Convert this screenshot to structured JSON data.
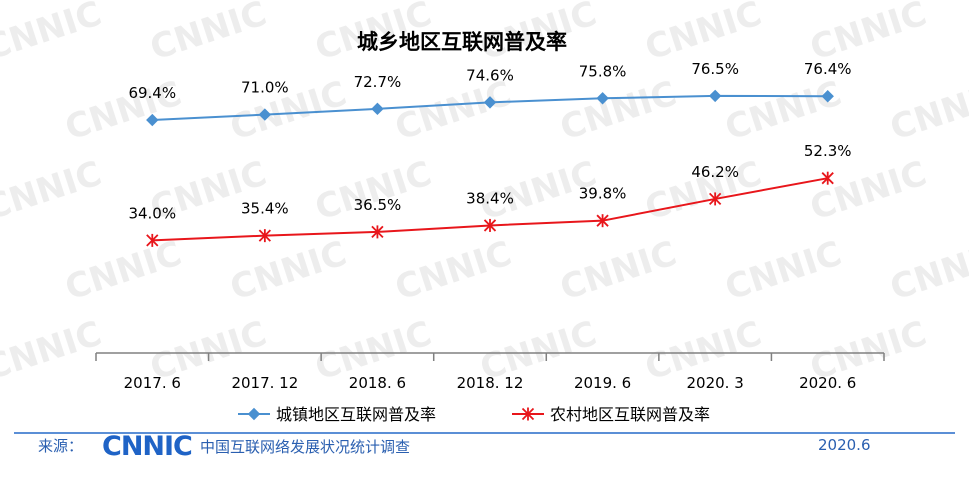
{
  "chart_data": {
    "type": "line",
    "title": "城乡地区互联网普及率",
    "categories": [
      "2017. 6",
      "2017. 12",
      "2018. 6",
      "2018. 12",
      "2019. 6",
      "2020. 3",
      "2020. 6"
    ],
    "series": [
      {
        "name": "城镇地区互联网普及率",
        "values": [
          69.4,
          71.0,
          72.7,
          74.6,
          75.8,
          76.5,
          76.4
        ],
        "labels": [
          "69.4%",
          "71.0%",
          "72.7%",
          "74.6%",
          "75.8%",
          "76.5%",
          "76.4%"
        ],
        "color": "#4a90d0",
        "marker": "diamond"
      },
      {
        "name": "农村地区互联网普及率",
        "values": [
          34.0,
          35.4,
          36.5,
          38.4,
          39.8,
          46.2,
          52.3
        ],
        "labels": [
          "34.0%",
          "35.4%",
          "36.5%",
          "38.4%",
          "39.8%",
          "46.2%",
          "52.3%"
        ],
        "color": "#e8161b",
        "marker": "star"
      }
    ],
    "ylim": [
      0,
      100
    ],
    "grid": false,
    "legend": "bottom"
  },
  "watermark": "CNNIC",
  "footer": {
    "source_label": "来源：",
    "logo_text": "CNNIC",
    "source_name": "中国互联网络发展状况统计调查",
    "date": "2020.6"
  }
}
